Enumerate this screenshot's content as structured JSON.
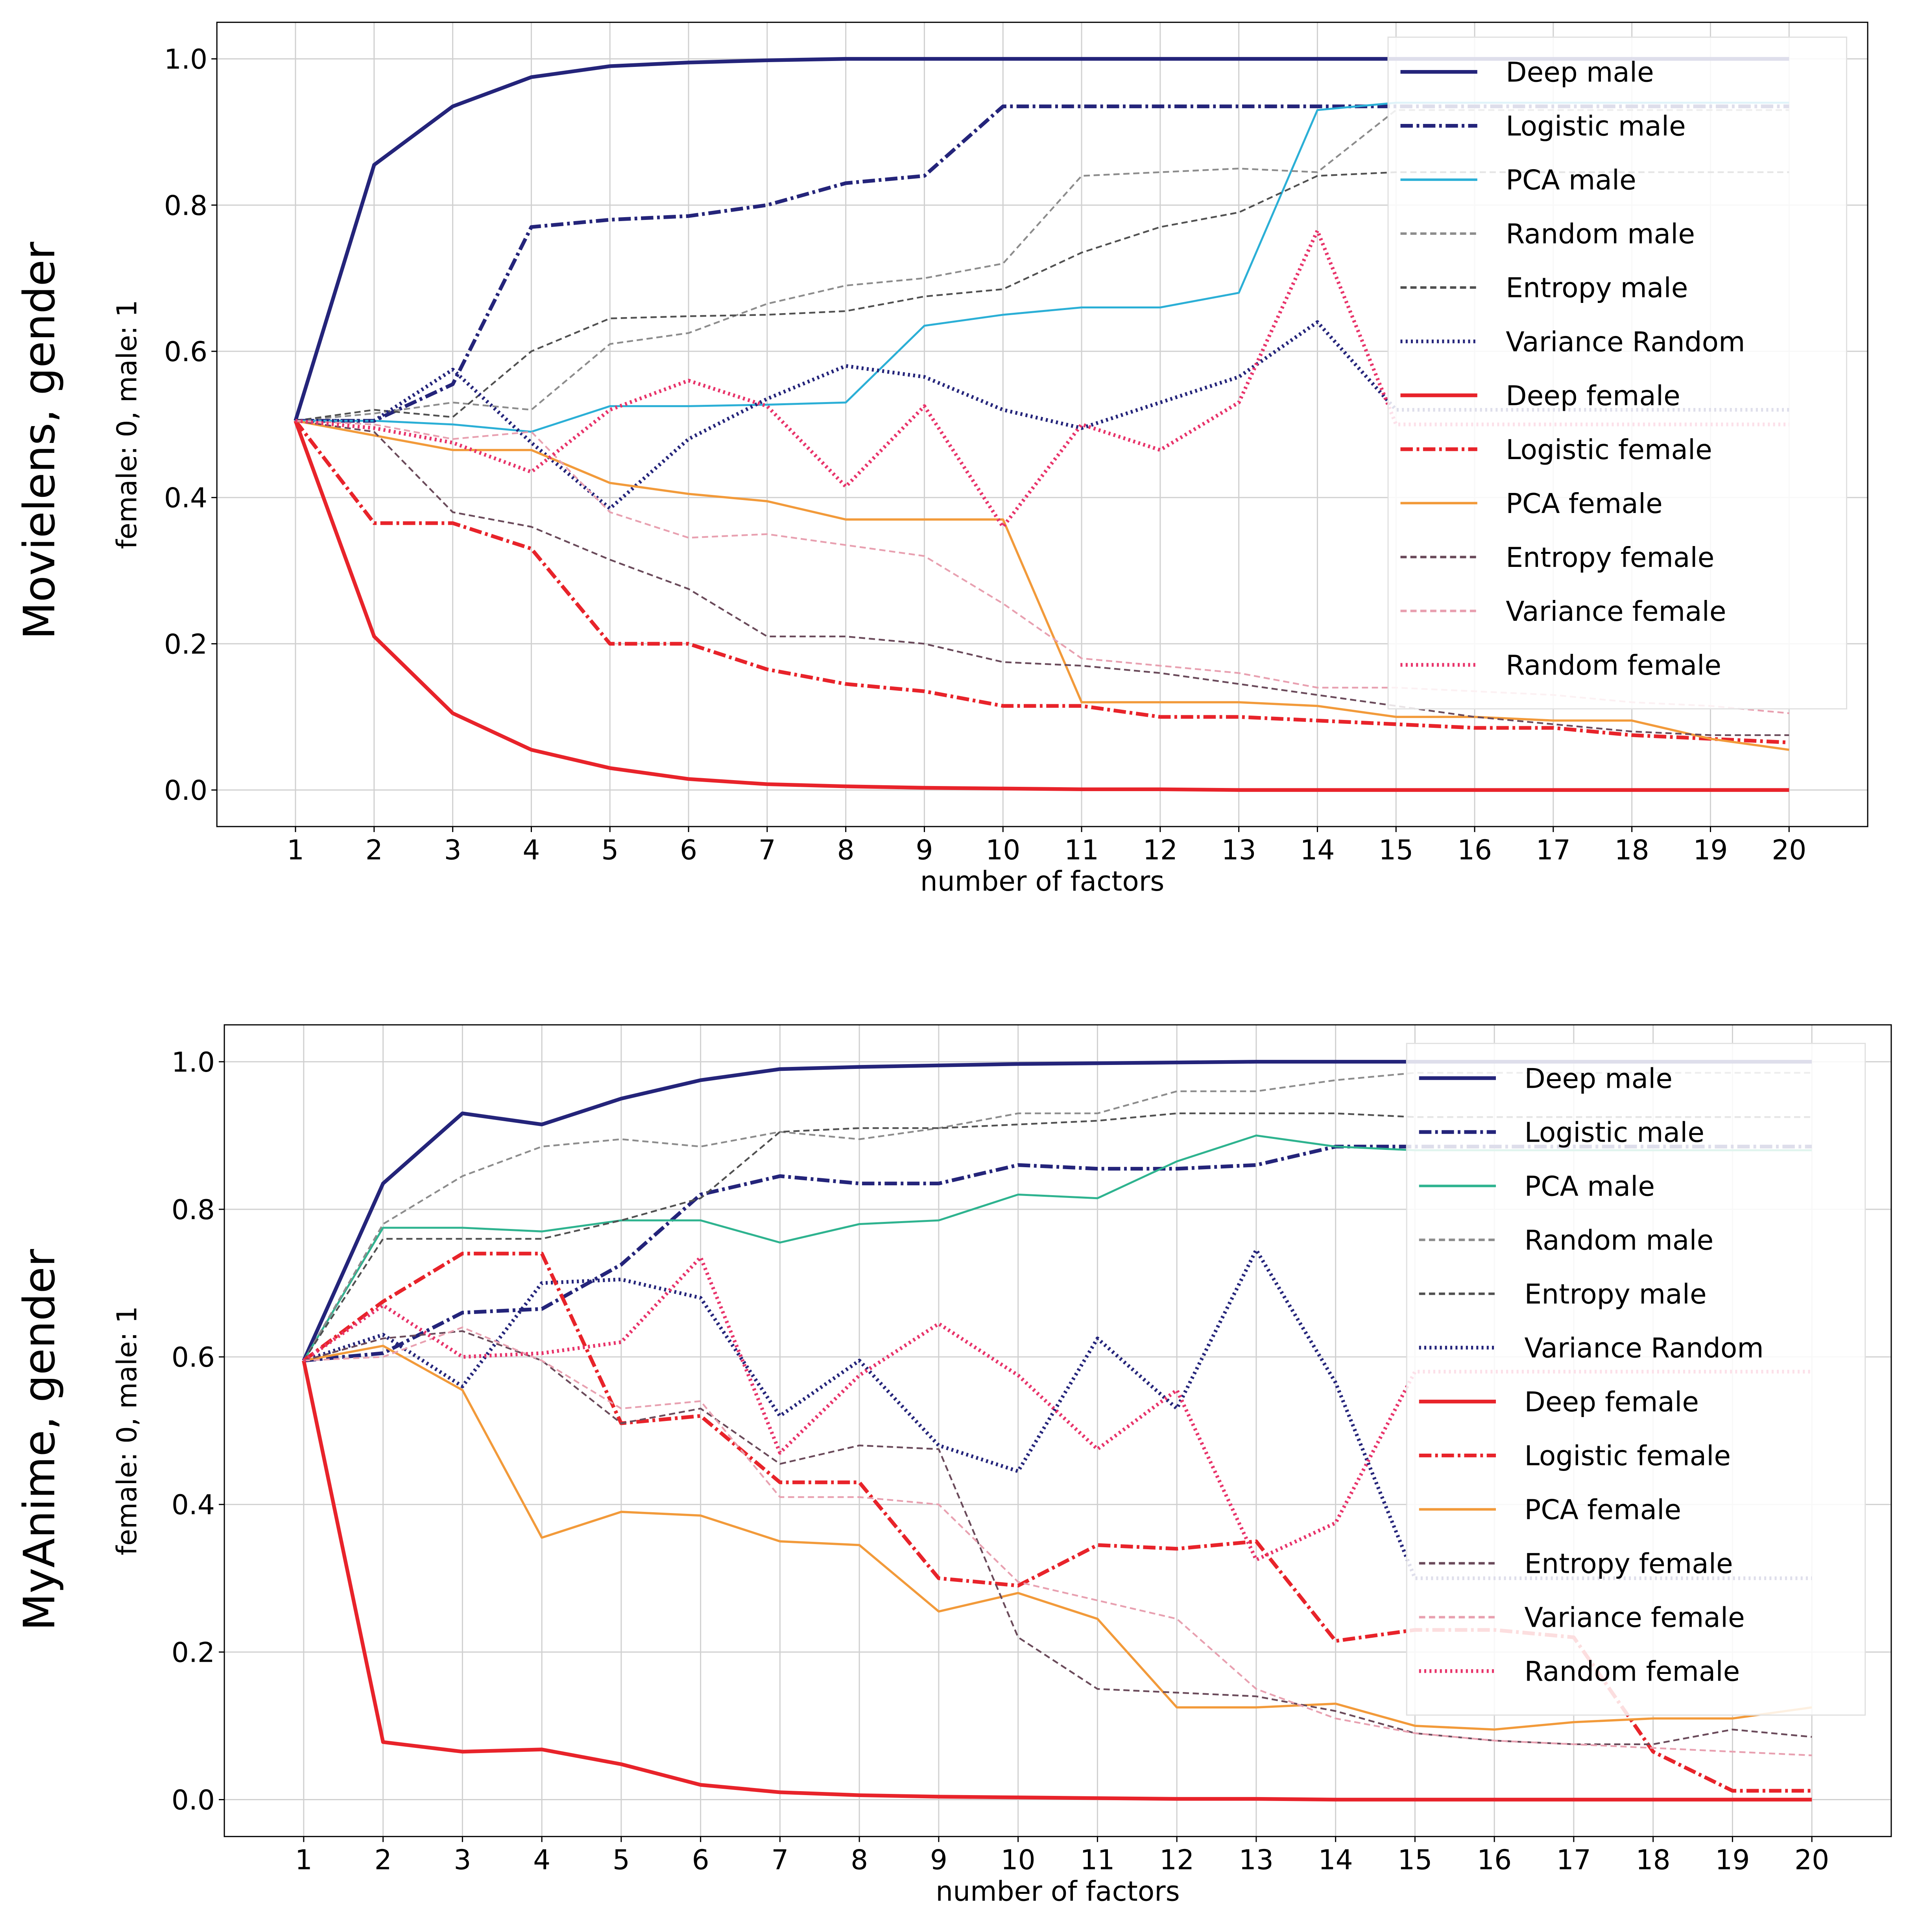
{
  "panels": [
    {
      "row_label": "Movielens, gender",
      "ylabel_left": "female: 0,",
      "ylabel_right": "male: 1"
    },
    {
      "row_label": "MyAnime, gender",
      "ylabel_left": "female: 0,",
      "ylabel_right": "male: 1"
    }
  ],
  "colors": {
    "deep_male": "#24247a",
    "logistic_male": "#24247a",
    "pca_male_1": "#2bafd6",
    "pca_male_2": "#2eb38f",
    "random_male": "#8c8c8c",
    "entropy_male": "#505050",
    "variance_random": "#24247a",
    "deep_female": "#e8232a",
    "logistic_female": "#e8232a",
    "pca_female": "#f29a3a",
    "entropy_female": "#6a4a5a",
    "variance_female": "#e8a0b0",
    "random_female": "#e8336a"
  },
  "chart_data": [
    {
      "type": "line",
      "title": "",
      "xlabel": "number of factors",
      "ylabel": "female: 0,    male: 1",
      "xlim": [
        0.0,
        21.0
      ],
      "ylim": [
        -0.05,
        1.05
      ],
      "xticks": [
        1,
        2,
        3,
        4,
        5,
        6,
        7,
        8,
        9,
        10,
        11,
        12,
        13,
        14,
        15,
        16,
        17,
        18,
        19,
        20
      ],
      "yticks": [
        0.0,
        0.2,
        0.4,
        0.6,
        0.8,
        1.0
      ],
      "ytick_labels": [
        "0.0",
        "0.2",
        "0.4",
        "0.6",
        "0.8",
        "1.0"
      ],
      "grid": true,
      "legend_position": "top-right",
      "x": [
        1,
        2,
        3,
        4,
        5,
        6,
        7,
        8,
        9,
        10,
        11,
        12,
        13,
        14,
        15,
        16,
        17,
        18,
        19,
        20
      ],
      "series": [
        {
          "name": "Deep male",
          "style": "solid",
          "width": 3,
          "color": "#24247a",
          "values": [
            0.505,
            0.855,
            0.935,
            0.975,
            0.99,
            0.995,
            0.998,
            1.0,
            1.0,
            1.0,
            1.0,
            1.0,
            1.0,
            1.0,
            1.0,
            1.0,
            1.0,
            1.0,
            1.0,
            1.0
          ]
        },
        {
          "name": "Logistic male",
          "style": "dashdot",
          "width": 3,
          "color": "#24247a",
          "values": [
            0.505,
            0.505,
            0.555,
            0.77,
            0.78,
            0.785,
            0.8,
            0.83,
            0.84,
            0.935,
            0.935,
            0.935,
            0.935,
            0.935,
            0.935,
            0.935,
            0.935,
            0.935,
            0.935,
            0.935
          ]
        },
        {
          "name": "PCA male",
          "style": "solid",
          "width": 1.6,
          "color": "#2bafd6",
          "values": [
            0.505,
            0.505,
            0.5,
            0.49,
            0.525,
            0.525,
            0.527,
            0.53,
            0.635,
            0.65,
            0.66,
            0.66,
            0.68,
            0.93,
            0.94,
            0.94,
            0.94,
            0.94,
            0.94,
            0.94
          ]
        },
        {
          "name": "Random male",
          "style": "dashed",
          "width": 1.4,
          "color": "#8c8c8c",
          "values": [
            0.505,
            0.515,
            0.53,
            0.52,
            0.61,
            0.625,
            0.665,
            0.69,
            0.7,
            0.72,
            0.84,
            0.845,
            0.85,
            0.845,
            0.93,
            0.93,
            0.93,
            0.93,
            0.93,
            0.93
          ]
        },
        {
          "name": "Entropy male",
          "style": "dashed",
          "width": 1.4,
          "color": "#505050",
          "values": [
            0.505,
            0.52,
            0.51,
            0.6,
            0.645,
            0.648,
            0.65,
            0.655,
            0.675,
            0.685,
            0.735,
            0.77,
            0.79,
            0.84,
            0.845,
            0.845,
            0.845,
            0.845,
            0.845,
            0.845
          ]
        },
        {
          "name": "Variance Random",
          "style": "dotted",
          "width": 3,
          "color": "#24247a",
          "values": [
            0.505,
            0.505,
            0.575,
            0.475,
            0.385,
            0.48,
            0.535,
            0.58,
            0.565,
            0.52,
            0.495,
            0.53,
            0.565,
            0.64,
            0.52,
            0.52,
            0.52,
            0.52,
            0.52,
            0.52
          ]
        },
        {
          "name": "Deep female",
          "style": "solid",
          "width": 3,
          "color": "#e8232a",
          "values": [
            0.505,
            0.21,
            0.105,
            0.055,
            0.03,
            0.015,
            0.008,
            0.005,
            0.003,
            0.002,
            0.001,
            0.001,
            0.0,
            0.0,
            0.0,
            0.0,
            0.0,
            0.0,
            0.0,
            0.0
          ]
        },
        {
          "name": "Logistic female",
          "style": "dashdot",
          "width": 3,
          "color": "#e8232a",
          "values": [
            0.505,
            0.365,
            0.365,
            0.33,
            0.2,
            0.2,
            0.165,
            0.145,
            0.135,
            0.115,
            0.115,
            0.1,
            0.1,
            0.095,
            0.09,
            0.085,
            0.085,
            0.075,
            0.07,
            0.065
          ]
        },
        {
          "name": "PCA female",
          "style": "solid",
          "width": 1.8,
          "color": "#f29a3a",
          "values": [
            0.505,
            0.485,
            0.465,
            0.465,
            0.42,
            0.405,
            0.395,
            0.37,
            0.37,
            0.37,
            0.12,
            0.12,
            0.12,
            0.115,
            0.1,
            0.1,
            0.095,
            0.095,
            0.07,
            0.055
          ]
        },
        {
          "name": "Entropy female",
          "style": "dashed",
          "width": 1.4,
          "color": "#6a4a5a",
          "values": [
            0.505,
            0.49,
            0.38,
            0.36,
            0.315,
            0.275,
            0.21,
            0.21,
            0.2,
            0.175,
            0.17,
            0.16,
            0.145,
            0.13,
            0.115,
            0.1,
            0.09,
            0.08,
            0.075,
            0.075
          ]
        },
        {
          "name": "Variance female",
          "style": "dashed",
          "width": 1.4,
          "color": "#e8a0b0",
          "values": [
            0.505,
            0.5,
            0.48,
            0.49,
            0.38,
            0.345,
            0.35,
            0.335,
            0.32,
            0.255,
            0.18,
            0.17,
            0.16,
            0.14,
            0.14,
            0.135,
            0.13,
            0.12,
            0.115,
            0.105
          ]
        },
        {
          "name": "Random female",
          "style": "dotted",
          "width": 3,
          "color": "#e8336a",
          "values": [
            0.505,
            0.495,
            0.475,
            0.435,
            0.52,
            0.56,
            0.525,
            0.415,
            0.525,
            0.36,
            0.5,
            0.465,
            0.53,
            0.765,
            0.5,
            0.5,
            0.5,
            0.5,
            0.5,
            0.5
          ]
        }
      ]
    },
    {
      "type": "line",
      "title": "",
      "xlabel": "number of factors",
      "ylabel": "female: 0,    male: 1",
      "xlim": [
        0.0,
        21.0
      ],
      "ylim": [
        -0.05,
        1.05
      ],
      "xticks": [
        1,
        2,
        3,
        4,
        5,
        6,
        7,
        8,
        9,
        10,
        11,
        12,
        13,
        14,
        15,
        16,
        17,
        18,
        19,
        20
      ],
      "yticks": [
        0.0,
        0.2,
        0.4,
        0.6,
        0.8,
        1.0
      ],
      "ytick_labels": [
        "0.0",
        "0.2",
        "0.4",
        "0.6",
        "0.8",
        "1.0"
      ],
      "grid": true,
      "legend_position": "top-right",
      "x": [
        1,
        2,
        3,
        4,
        5,
        6,
        7,
        8,
        9,
        10,
        11,
        12,
        13,
        14,
        15,
        16,
        17,
        18,
        19,
        20
      ],
      "series": [
        {
          "name": "Deep male",
          "style": "solid",
          "width": 3,
          "color": "#24247a",
          "values": [
            0.595,
            0.835,
            0.93,
            0.915,
            0.95,
            0.975,
            0.99,
            0.993,
            0.995,
            0.997,
            0.998,
            0.999,
            1.0,
            1.0,
            1.0,
            1.0,
            1.0,
            1.0,
            1.0,
            1.0
          ]
        },
        {
          "name": "Logistic male",
          "style": "dashdot",
          "width": 3,
          "color": "#24247a",
          "values": [
            0.595,
            0.605,
            0.66,
            0.665,
            0.725,
            0.82,
            0.845,
            0.835,
            0.835,
            0.86,
            0.855,
            0.855,
            0.86,
            0.885,
            0.885,
            0.885,
            0.885,
            0.885,
            0.885,
            0.885
          ]
        },
        {
          "name": "PCA male",
          "style": "solid",
          "width": 1.6,
          "color": "#2eb38f",
          "values": [
            0.595,
            0.775,
            0.775,
            0.77,
            0.785,
            0.785,
            0.755,
            0.78,
            0.785,
            0.82,
            0.815,
            0.865,
            0.9,
            0.885,
            0.88,
            0.88,
            0.88,
            0.88,
            0.88,
            0.88
          ]
        },
        {
          "name": "Random male",
          "style": "dashed",
          "width": 1.4,
          "color": "#8c8c8c",
          "values": [
            0.595,
            0.78,
            0.845,
            0.885,
            0.895,
            0.885,
            0.905,
            0.895,
            0.91,
            0.93,
            0.93,
            0.96,
            0.96,
            0.975,
            0.985,
            0.985,
            0.985,
            0.985,
            0.985,
            0.985
          ]
        },
        {
          "name": "Entropy male",
          "style": "dashed",
          "width": 1.4,
          "color": "#505050",
          "values": [
            0.595,
            0.76,
            0.76,
            0.76,
            0.785,
            0.815,
            0.905,
            0.91,
            0.91,
            0.915,
            0.92,
            0.93,
            0.93,
            0.93,
            0.925,
            0.925,
            0.925,
            0.925,
            0.925,
            0.925
          ]
        },
        {
          "name": "Variance Random",
          "style": "dotted",
          "width": 3,
          "color": "#24247a",
          "values": [
            0.595,
            0.63,
            0.56,
            0.7,
            0.705,
            0.68,
            0.52,
            0.595,
            0.48,
            0.445,
            0.625,
            0.53,
            0.745,
            0.565,
            0.3,
            0.3,
            0.3,
            0.3,
            0.3,
            0.3
          ]
        },
        {
          "name": "Deep female",
          "style": "solid",
          "width": 3,
          "color": "#e8232a",
          "values": [
            0.595,
            0.078,
            0.065,
            0.068,
            0.048,
            0.02,
            0.01,
            0.006,
            0.004,
            0.003,
            0.002,
            0.001,
            0.001,
            0.0,
            0.0,
            0.0,
            0.0,
            0.0,
            0.0,
            0.0
          ]
        },
        {
          "name": "Logistic female",
          "style": "dashdot",
          "width": 3,
          "color": "#e8232a",
          "values": [
            0.595,
            0.675,
            0.74,
            0.74,
            0.51,
            0.52,
            0.43,
            0.43,
            0.3,
            0.29,
            0.345,
            0.34,
            0.35,
            0.215,
            0.23,
            0.23,
            0.22,
            0.065,
            0.012,
            0.012
          ]
        },
        {
          "name": "PCA female",
          "style": "solid",
          "width": 1.8,
          "color": "#f29a3a",
          "values": [
            0.595,
            0.615,
            0.555,
            0.355,
            0.39,
            0.385,
            0.35,
            0.345,
            0.255,
            0.28,
            0.245,
            0.125,
            0.125,
            0.13,
            0.1,
            0.095,
            0.105,
            0.11,
            0.11,
            0.125
          ]
        },
        {
          "name": "Entropy female",
          "style": "dashed",
          "width": 1.4,
          "color": "#6a4a5a",
          "values": [
            0.595,
            0.625,
            0.635,
            0.595,
            0.51,
            0.53,
            0.455,
            0.48,
            0.475,
            0.22,
            0.15,
            0.145,
            0.14,
            0.12,
            0.09,
            0.08,
            0.075,
            0.075,
            0.095,
            0.085
          ]
        },
        {
          "name": "Variance female",
          "style": "dashed",
          "width": 1.4,
          "color": "#e8a0b0",
          "values": [
            0.595,
            0.6,
            0.64,
            0.595,
            0.53,
            0.54,
            0.41,
            0.41,
            0.4,
            0.295,
            0.27,
            0.245,
            0.15,
            0.11,
            0.09,
            0.08,
            0.075,
            0.07,
            0.065,
            0.06
          ]
        },
        {
          "name": "Random female",
          "style": "dotted",
          "width": 3,
          "color": "#e8336a",
          "values": [
            0.595,
            0.67,
            0.6,
            0.605,
            0.62,
            0.735,
            0.47,
            0.575,
            0.645,
            0.575,
            0.475,
            0.555,
            0.325,
            0.375,
            0.58,
            0.58,
            0.58,
            0.58,
            0.58,
            0.58
          ]
        }
      ]
    }
  ]
}
